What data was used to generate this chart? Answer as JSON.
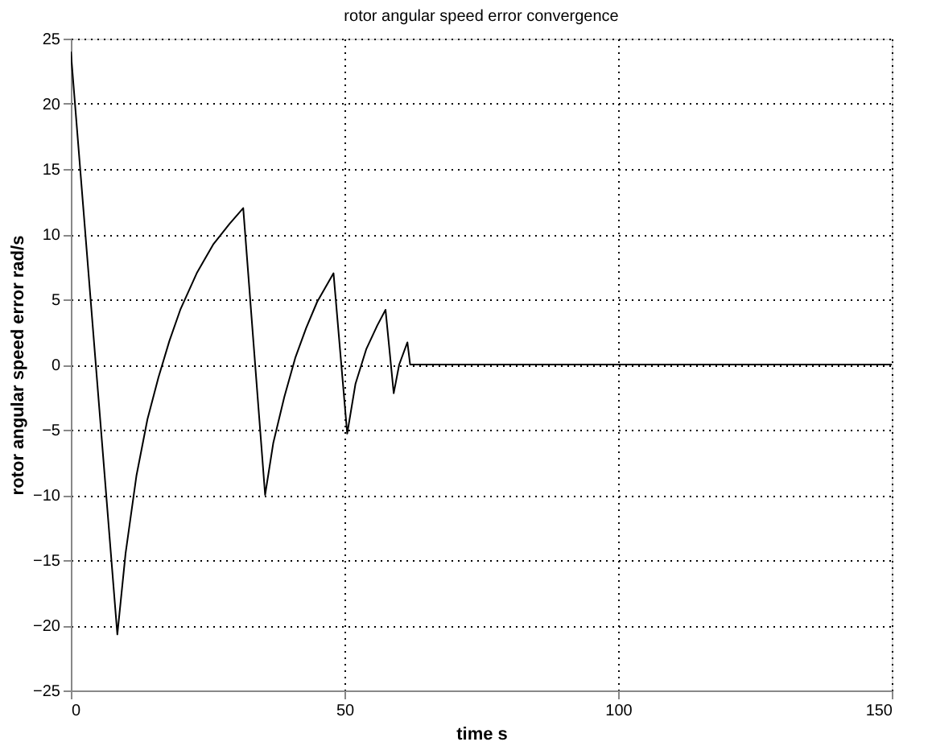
{
  "chart_data": {
    "type": "line",
    "title": "rotor angular speed error convergence",
    "xlabel": "time  s",
    "ylabel": "rotor angular speed error  rad/s",
    "series": [
      {
        "color": "#000000",
        "x": [
          0,
          8.5,
          10,
          12,
          14,
          16,
          18,
          20,
          23,
          26,
          29,
          31.5,
          35.5,
          37,
          39,
          41,
          43,
          45,
          48,
          50.5,
          52,
          54,
          56,
          57.5,
          59,
          60,
          61.5,
          62,
          150
        ],
        "values": [
          24,
          -20.7,
          -14.5,
          -8.5,
          -4.2,
          -1,
          1.8,
          4.2,
          7,
          9.2,
          10.8,
          12,
          -10,
          -6,
          -2.5,
          0.5,
          2.8,
          4.8,
          7,
          -5.3,
          -1.5,
          1.2,
          3,
          4.2,
          -2.2,
          0,
          1.7,
          0,
          0
        ]
      }
    ],
    "xlim": [
      0,
      150
    ],
    "xticks": [
      0,
      50,
      100,
      150
    ],
    "ylim": [
      -25,
      25
    ],
    "yticks": [
      -25,
      -20,
      -15,
      -10,
      -5,
      0,
      5,
      10,
      15,
      20,
      25
    ],
    "grid": true,
    "marker": "none",
    "line_style": "solid"
  }
}
